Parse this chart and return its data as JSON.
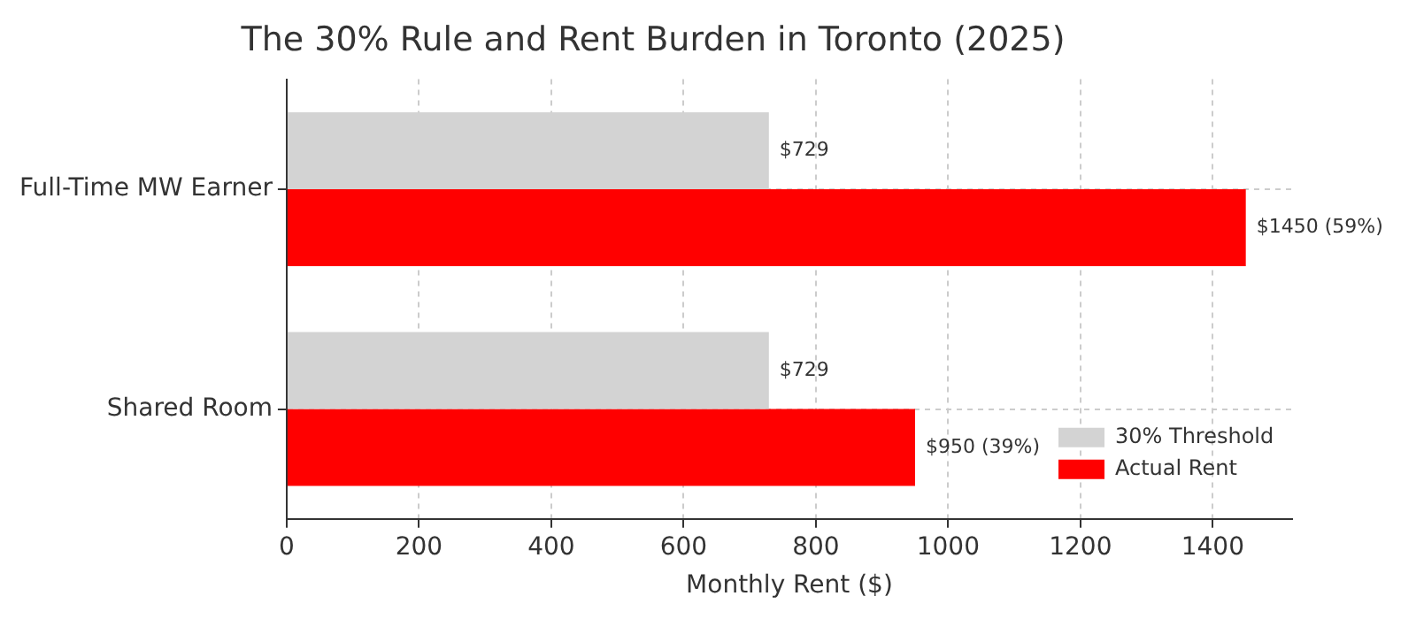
{
  "chart_data": {
    "type": "bar",
    "orientation": "horizontal",
    "title": "The 30% Rule and Rent Burden in Toronto (2025)",
    "xlabel": "Monthly Rent ($)",
    "categories": [
      "Full-Time MW Earner",
      "Shared Room"
    ],
    "series": [
      {
        "name": "30% Threshold",
        "color": "#d3d3d3",
        "values": [
          729,
          729
        ],
        "value_labels": [
          "$729",
          "$729"
        ]
      },
      {
        "name": "Actual Rent",
        "color": "#ff0000",
        "values": [
          1450,
          950
        ],
        "value_labels": [
          "$1450 (59%)",
          "$950 (39%)"
        ]
      }
    ],
    "xlim": [
      0,
      1520
    ],
    "xticks": [
      0,
      200,
      400,
      600,
      800,
      1000,
      1200,
      1400
    ],
    "grid": true,
    "legend": "bottom right"
  }
}
